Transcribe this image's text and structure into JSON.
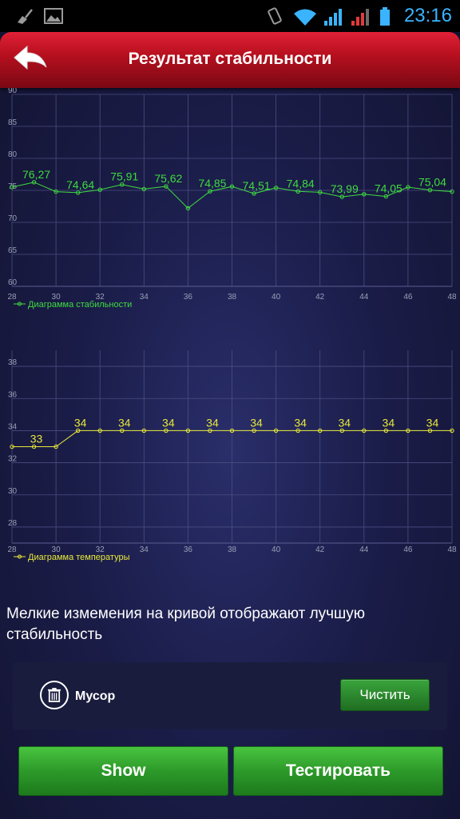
{
  "status_bar": {
    "time": "23:16"
  },
  "header": {
    "title": "Результат стабильности"
  },
  "chart_data": [
    {
      "type": "line",
      "x": [
        28,
        29,
        30,
        31,
        32,
        33,
        34,
        35,
        36,
        37,
        38,
        39,
        40,
        41,
        42,
        43,
        44,
        45,
        46,
        47,
        48
      ],
      "series": [
        {
          "name": "Диаграмма стабильности",
          "values": [
            75.5,
            76.27,
            74.8,
            74.64,
            75.1,
            75.91,
            75.2,
            75.62,
            72.2,
            74.85,
            75.6,
            74.51,
            75.4,
            74.84,
            74.7,
            73.99,
            74.4,
            74.05,
            75.5,
            75.04,
            74.8
          ]
        }
      ],
      "data_labels": [
        {
          "x": 29,
          "label": "76,27"
        },
        {
          "x": 31,
          "label": "74,64"
        },
        {
          "x": 33,
          "label": "75,91"
        },
        {
          "x": 35,
          "label": "75,62"
        },
        {
          "x": 37,
          "label": "74,85"
        },
        {
          "x": 39,
          "label": "74,51"
        },
        {
          "x": 41,
          "label": "74,84"
        },
        {
          "x": 43,
          "label": "73,99"
        },
        {
          "x": 45,
          "label": "74,05"
        },
        {
          "x": 47,
          "label": "75,04"
        }
      ],
      "x_ticks": [
        "28",
        "30",
        "32",
        "34",
        "36",
        "38",
        "40",
        "42",
        "44",
        "46",
        "48"
      ],
      "y_ticks": [
        "60",
        "65",
        "70",
        "75",
        "80",
        "85",
        "90"
      ],
      "ylim": [
        60,
        90
      ],
      "xlim": [
        28,
        48
      ],
      "color": "#3fdc3f",
      "grid": true,
      "legend": "bottom-left"
    },
    {
      "type": "line",
      "x": [
        28,
        29,
        30,
        31,
        32,
        33,
        34,
        35,
        36,
        37,
        38,
        39,
        40,
        41,
        42,
        43,
        44,
        45,
        46,
        47,
        48
      ],
      "series": [
        {
          "name": "Диаграмма температуры",
          "values": [
            33,
            33,
            33,
            34,
            34,
            34,
            34,
            34,
            34,
            34,
            34,
            34,
            34,
            34,
            34,
            34,
            34,
            34,
            34,
            34,
            34
          ]
        }
      ],
      "data_labels": [
        {
          "x": 29,
          "label": "33"
        },
        {
          "x": 31,
          "label": "34"
        },
        {
          "x": 33,
          "label": "34"
        },
        {
          "x": 35,
          "label": "34"
        },
        {
          "x": 37,
          "label": "34"
        },
        {
          "x": 39,
          "label": "34"
        },
        {
          "x": 41,
          "label": "34"
        },
        {
          "x": 43,
          "label": "34"
        },
        {
          "x": 45,
          "label": "34"
        },
        {
          "x": 47,
          "label": "34"
        }
      ],
      "x_ticks": [
        "28",
        "30",
        "32",
        "34",
        "36",
        "38",
        "40",
        "42",
        "44",
        "46",
        "48"
      ],
      "y_ticks": [
        "28",
        "30",
        "32",
        "34",
        "36",
        "38"
      ],
      "ylim": [
        27,
        39
      ],
      "xlim": [
        28,
        48
      ],
      "color": "#e8e83a",
      "grid": true,
      "legend": "bottom-left"
    }
  ],
  "note": "Мелкие измемения на кривой отображают лучшую стабильность",
  "trash": {
    "label": "Мусор",
    "clean_button": "Чистить"
  },
  "buttons": {
    "show": "Show",
    "test": "Тестировать"
  },
  "colors": {
    "header_red": "#c0101f",
    "button_green": "#2d9a2a",
    "accent_blue": "#3ab4ff"
  }
}
